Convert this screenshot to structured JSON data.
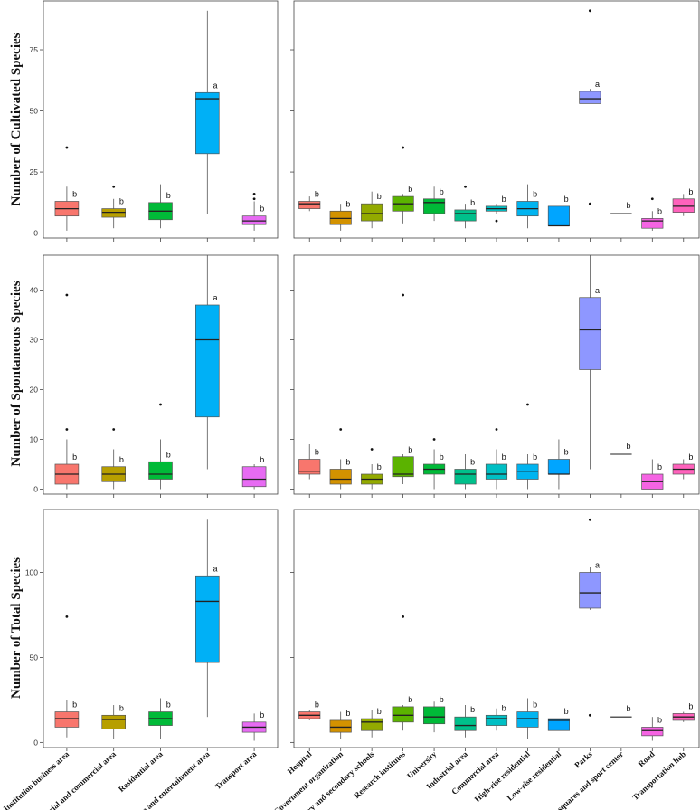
{
  "chart_data": [
    {
      "type": "box",
      "panel": "top-left",
      "ylabel": "Number of Cultivated Species",
      "ylim": [
        -2,
        95
      ],
      "yticks": [
        0,
        25,
        50,
        75
      ],
      "show_y_tick_labels": true,
      "show_category_labels": false,
      "categories": [
        {
          "name": "Institution business area",
          "color": "#F8766D",
          "min": 1,
          "q1": 7,
          "median": 10,
          "q3": 13,
          "max": 19,
          "outliers": [
            35
          ],
          "sig": "b"
        },
        {
          "name": "Industrial and commercial area",
          "color": "#B79F00",
          "min": 2,
          "q1": 6.5,
          "median": 8.5,
          "q3": 10,
          "max": 14,
          "outliers": [
            19
          ],
          "sig": "b"
        },
        {
          "name": "Residential area",
          "color": "#00BA38",
          "min": 2,
          "q1": 5.5,
          "median": 9,
          "q3": 12.5,
          "max": 20,
          "outliers": [],
          "sig": "b"
        },
        {
          "name": "Leisure and entertainment area",
          "color": "#00B0F6",
          "min": 8,
          "q1": 32.5,
          "median": 55,
          "q3": 57.5,
          "max": 91,
          "outliers": [],
          "sig": "a"
        },
        {
          "name": "Transport area",
          "color": "#E76BF3",
          "min": 1,
          "q1": 3.5,
          "median": 5,
          "q3": 7,
          "max": 13,
          "outliers": [
            14,
            16
          ],
          "sig": "b"
        }
      ]
    },
    {
      "type": "box",
      "panel": "top-right",
      "ylabel": "",
      "ylim": [
        -2,
        95
      ],
      "yticks": [
        0,
        25,
        50,
        75
      ],
      "show_y_tick_labels": false,
      "show_category_labels": false,
      "categories": [
        {
          "name": "Hospital",
          "color": "#F8766D",
          "min": 9,
          "q1": 10,
          "median": 12,
          "q3": 13,
          "max": 15,
          "outliers": [],
          "sig": "b"
        },
        {
          "name": "Government organization",
          "color": "#D39200",
          "min": 1,
          "q1": 3.5,
          "median": 6,
          "q3": 9,
          "max": 12,
          "outliers": [],
          "sig": "b"
        },
        {
          "name": "Primary and secondary schools",
          "color": "#93AA00",
          "min": 2,
          "q1": 5,
          "median": 8,
          "q3": 12,
          "max": 17,
          "outliers": [],
          "sig": "b"
        },
        {
          "name": "Research institutes",
          "color": "#5BB300",
          "min": 4,
          "q1": 9,
          "median": 12,
          "q3": 15,
          "max": 16,
          "outliers": [
            35
          ],
          "sig": "b"
        },
        {
          "name": "University",
          "color": "#00BA38",
          "min": 5,
          "q1": 8,
          "median": 12.5,
          "q3": 14,
          "max": 19,
          "outliers": [],
          "sig": "b"
        },
        {
          "name": "Industrial area",
          "color": "#00C08B",
          "min": 2,
          "q1": 5,
          "median": 8,
          "q3": 9.5,
          "max": 12,
          "outliers": [
            19
          ],
          "sig": "b"
        },
        {
          "name": "Commercial area",
          "color": "#00BFC4",
          "min": 8,
          "q1": 9,
          "median": 10,
          "q3": 11,
          "max": 12,
          "outliers": [
            5
          ],
          "sig": "b"
        },
        {
          "name": "High-rise residential",
          "color": "#00B4F0",
          "min": 2,
          "q1": 7,
          "median": 10,
          "q3": 13,
          "max": 20,
          "outliers": [],
          "sig": "b"
        },
        {
          "name": "Low-rise residential",
          "color": "#00A5FF",
          "min": 3,
          "q1": 3,
          "median": 3,
          "q3": 11,
          "max": 11,
          "outliers": [],
          "sig": "b"
        },
        {
          "name": "Parks",
          "color": "#8E97FF",
          "min": 53,
          "q1": 53,
          "median": 55,
          "q3": 58,
          "max": 59,
          "outliers": [
            91,
            12
          ],
          "sig": "a"
        },
        {
          "name": "Town squares and sport center",
          "color": "#DB72FB",
          "min": 8,
          "q1": 8,
          "median": 8,
          "q3": 8,
          "max": 8,
          "outliers": [],
          "sig": "b"
        },
        {
          "name": "Road",
          "color": "#F564E3",
          "min": 1,
          "q1": 2,
          "median": 5,
          "q3": 6,
          "max": 9,
          "outliers": [
            14
          ],
          "sig": "b"
        },
        {
          "name": "Transportation hub",
          "color": "#FF62BC",
          "min": 7,
          "q1": 8.5,
          "median": 11,
          "q3": 14,
          "max": 16,
          "outliers": [],
          "sig": "b"
        }
      ]
    },
    {
      "type": "box",
      "panel": "middle-left",
      "ylabel": "Number of Spontaneous Species",
      "ylim": [
        -1,
        47
      ],
      "yticks": [
        0,
        10,
        20,
        30,
        40
      ],
      "show_y_tick_labels": true,
      "show_category_labels": false,
      "categories": [
        {
          "name": "Institution business area",
          "color": "#F8766D",
          "min": 0,
          "q1": 1,
          "median": 3,
          "q3": 5,
          "max": 10,
          "outliers": [
            12,
            39
          ],
          "sig": "b"
        },
        {
          "name": "Industrial and commercial area",
          "color": "#B79F00",
          "min": 0,
          "q1": 1.5,
          "median": 3,
          "q3": 4.5,
          "max": 8,
          "outliers": [
            12
          ],
          "sig": "b"
        },
        {
          "name": "Residential area",
          "color": "#00BA38",
          "min": 0,
          "q1": 2,
          "median": 3,
          "q3": 5.5,
          "max": 10,
          "outliers": [
            17
          ],
          "sig": "b"
        },
        {
          "name": "Leisure and entertainment area",
          "color": "#00B0F6",
          "min": 4,
          "q1": 14.5,
          "median": 30,
          "q3": 37,
          "max": 47,
          "outliers": [],
          "sig": "a"
        },
        {
          "name": "Transport area",
          "color": "#E76BF3",
          "min": 0,
          "q1": 0.5,
          "median": 2,
          "q3": 4.5,
          "max": 5,
          "outliers": [],
          "sig": "b"
        }
      ]
    },
    {
      "type": "box",
      "panel": "middle-right",
      "ylabel": "",
      "ylim": [
        -1,
        47
      ],
      "yticks": [
        0,
        10,
        20,
        30,
        40
      ],
      "show_y_tick_labels": false,
      "show_category_labels": false,
      "categories": [
        {
          "name": "Hospital",
          "color": "#F8766D",
          "min": 2,
          "q1": 3,
          "median": 3.5,
          "q3": 6,
          "max": 9,
          "outliers": [],
          "sig": "b"
        },
        {
          "name": "Government organization",
          "color": "#D39200",
          "min": 0,
          "q1": 1,
          "median": 2,
          "q3": 4,
          "max": 6,
          "outliers": [
            12
          ],
          "sig": "b"
        },
        {
          "name": "Primary and secondary schools",
          "color": "#93AA00",
          "min": 0,
          "q1": 1,
          "median": 2,
          "q3": 3,
          "max": 5,
          "outliers": [
            8
          ],
          "sig": "b"
        },
        {
          "name": "Research institutes",
          "color": "#5BB300",
          "min": 1,
          "q1": 2.5,
          "median": 3,
          "q3": 6.5,
          "max": 7,
          "outliers": [
            39
          ],
          "sig": "b"
        },
        {
          "name": "University",
          "color": "#00BA38",
          "min": 0,
          "q1": 3,
          "median": 4,
          "q3": 5,
          "max": 8,
          "outliers": [
            10
          ],
          "sig": "b"
        },
        {
          "name": "Industrial area",
          "color": "#00C08B",
          "min": 0,
          "q1": 1,
          "median": 3,
          "q3": 4,
          "max": 7,
          "outliers": [],
          "sig": "b"
        },
        {
          "name": "Commercial area",
          "color": "#00BFC4",
          "min": 0,
          "q1": 2,
          "median": 3,
          "q3": 5,
          "max": 8,
          "outliers": [
            12
          ],
          "sig": "b"
        },
        {
          "name": "High-rise residential",
          "color": "#00B4F0",
          "min": 0,
          "q1": 2,
          "median": 3.5,
          "q3": 5,
          "max": 7,
          "outliers": [
            17
          ],
          "sig": "b"
        },
        {
          "name": "Low-rise residential",
          "color": "#00A5FF",
          "min": 0,
          "q1": 3,
          "median": 3,
          "q3": 6,
          "max": 10,
          "outliers": [],
          "sig": "b"
        },
        {
          "name": "Parks",
          "color": "#8E97FF",
          "min": 4,
          "q1": 24,
          "median": 32,
          "q3": 38.5,
          "max": 47,
          "outliers": [],
          "sig": "a"
        },
        {
          "name": "Town squares and sport center",
          "color": "#DB72FB",
          "min": 7,
          "q1": 7,
          "median": 7,
          "q3": 7,
          "max": 7,
          "outliers": [],
          "sig": "b"
        },
        {
          "name": "Road",
          "color": "#F564E3",
          "min": 0,
          "q1": 0,
          "median": 1.5,
          "q3": 3,
          "max": 6,
          "outliers": [],
          "sig": "b"
        },
        {
          "name": "Transportation hub",
          "color": "#FF62BC",
          "min": 2,
          "q1": 3,
          "median": 4,
          "q3": 5,
          "max": 6,
          "outliers": [],
          "sig": "b"
        }
      ]
    },
    {
      "type": "box",
      "panel": "bottom-left",
      "ylabel": "Number of Total Species",
      "ylim": [
        -3,
        137
      ],
      "yticks": [
        0,
        50,
        100
      ],
      "show_y_tick_labels": true,
      "show_category_labels": true,
      "categories": [
        {
          "name": "Institution business area",
          "color": "#F8766D",
          "min": 3,
          "q1": 9,
          "median": 14,
          "q3": 18,
          "max": 25,
          "outliers": [
            74
          ],
          "sig": "b"
        },
        {
          "name": "Industrial and commercial area",
          "color": "#B79F00",
          "min": 2,
          "q1": 8,
          "median": 13.5,
          "q3": 16,
          "max": 22,
          "outliers": [],
          "sig": "b"
        },
        {
          "name": "Residential area",
          "color": "#00BA38",
          "min": 2,
          "q1": 10,
          "median": 14,
          "q3": 18,
          "max": 26,
          "outliers": [],
          "sig": "b"
        },
        {
          "name": "Leisure and entertainment area",
          "color": "#00B0F6",
          "min": 15,
          "q1": 47,
          "median": 83,
          "q3": 98,
          "max": 131,
          "outliers": [],
          "sig": "a"
        },
        {
          "name": "Transport area",
          "color": "#E76BF3",
          "min": 1,
          "q1": 6,
          "median": 9,
          "q3": 12,
          "max": 17,
          "outliers": [],
          "sig": "b"
        }
      ]
    },
    {
      "type": "box",
      "panel": "bottom-right",
      "ylabel": "",
      "ylim": [
        -3,
        137
      ],
      "yticks": [
        0,
        50,
        100
      ],
      "show_y_tick_labels": false,
      "show_category_labels": true,
      "categories": [
        {
          "name": "Hospital",
          "color": "#F8766D",
          "min": 13,
          "q1": 14,
          "median": 16,
          "q3": 18,
          "max": 19,
          "outliers": [],
          "sig": "b"
        },
        {
          "name": "Government organization",
          "color": "#D39200",
          "min": 2,
          "q1": 6,
          "median": 9,
          "q3": 13,
          "max": 18,
          "outliers": [],
          "sig": "b"
        },
        {
          "name": "Primary and secondary schools",
          "color": "#93AA00",
          "min": 3,
          "q1": 7,
          "median": 12,
          "q3": 14,
          "max": 19,
          "outliers": [],
          "sig": "b"
        },
        {
          "name": "Research institutes",
          "color": "#5BB300",
          "min": 7,
          "q1": 12,
          "median": 16,
          "q3": 21,
          "max": 22,
          "outliers": [
            74
          ],
          "sig": "b"
        },
        {
          "name": "University",
          "color": "#00BA38",
          "min": 6,
          "q1": 11,
          "median": 15,
          "q3": 21,
          "max": 24,
          "outliers": [],
          "sig": "b"
        },
        {
          "name": "Industrial area",
          "color": "#00C08B",
          "min": 3,
          "q1": 7,
          "median": 10,
          "q3": 15,
          "max": 22,
          "outliers": [],
          "sig": "b"
        },
        {
          "name": "Commercial area",
          "color": "#00BFC4",
          "min": 7,
          "q1": 10,
          "median": 14,
          "q3": 16,
          "max": 20,
          "outliers": [],
          "sig": "b"
        },
        {
          "name": "High-rise residential",
          "color": "#00B4F0",
          "min": 2,
          "q1": 9,
          "median": 14,
          "q3": 18,
          "max": 26,
          "outliers": [],
          "sig": "b"
        },
        {
          "name": "Low-rise residential",
          "color": "#00A5FF",
          "min": 7,
          "q1": 7,
          "median": 13,
          "q3": 14,
          "max": 14,
          "outliers": [],
          "sig": "b"
        },
        {
          "name": "Parks",
          "color": "#8E97FF",
          "min": 78,
          "q1": 79,
          "median": 88,
          "q3": 100,
          "max": 103,
          "outliers": [
            131,
            16
          ],
          "sig": "a"
        },
        {
          "name": "Town squares and sport center",
          "color": "#DB72FB",
          "min": 15,
          "q1": 15,
          "median": 15,
          "q3": 15,
          "max": 15,
          "outliers": [],
          "sig": "b"
        },
        {
          "name": "Road",
          "color": "#F564E3",
          "min": 1,
          "q1": 4,
          "median": 7,
          "q3": 9,
          "max": 15,
          "outliers": [],
          "sig": "b"
        },
        {
          "name": "Transportation hub",
          "color": "#FF62BC",
          "min": 12,
          "q1": 13,
          "median": 15,
          "q3": 17,
          "max": 18,
          "outliers": [],
          "sig": "b"
        }
      ]
    }
  ]
}
